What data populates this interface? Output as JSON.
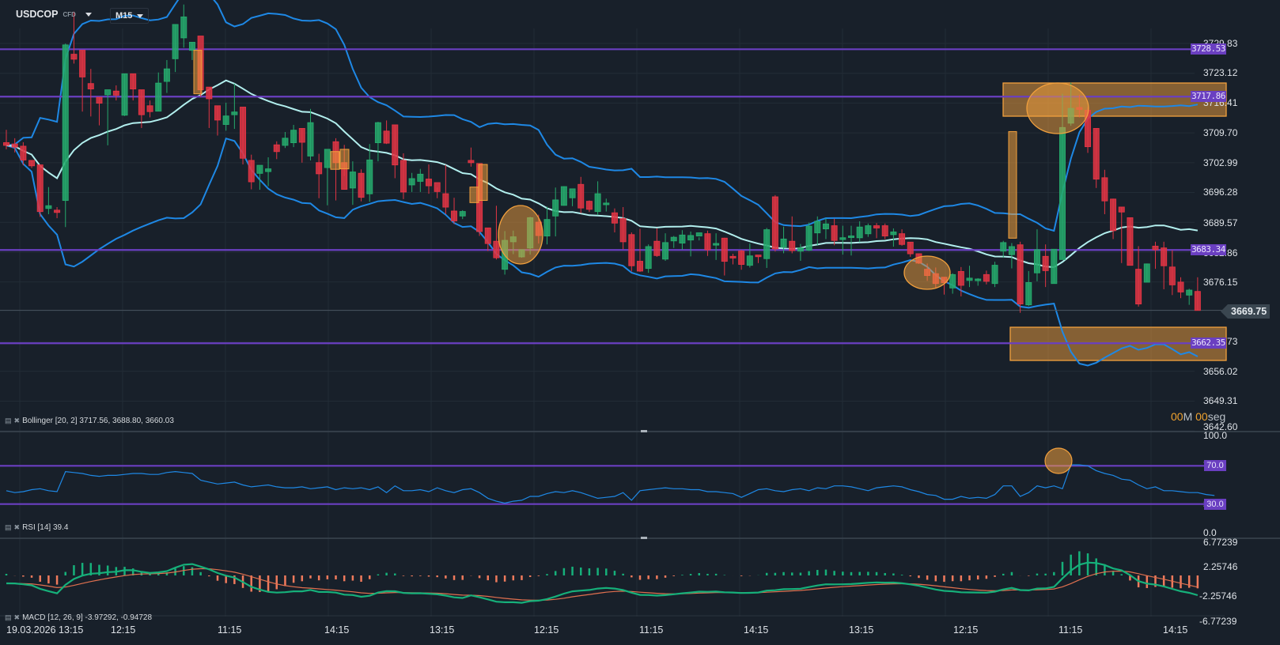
{
  "header": {
    "symbol": "USDCOP",
    "symbol_type": "CFD",
    "timeframe": "M15",
    "icons": [
      "chevron-down-icon",
      "chevron-down-icon"
    ]
  },
  "main_panel": {
    "price_axis": [
      "3729.83",
      "3723.12",
      "3716.41",
      "3709.70",
      "3702.99",
      "3696.28",
      "3689.57",
      "3682.86",
      "3676.15",
      "3669.75",
      "3662.73",
      "3656.02",
      "3649.31",
      "3642.60"
    ],
    "current_price": "3669.75",
    "horizontal_lines": [
      "3728.53",
      "3717.86",
      "3683.34",
      "3662.35"
    ],
    "timer": {
      "minutes": "00",
      "m_label": "M",
      "seconds": "00",
      "s_label": "seg"
    },
    "indicator_label": "Bollinger [20, 2] 3717.56, 3688.80, 3660.03"
  },
  "rsi_panel": {
    "axis": [
      "100.0",
      "70.0",
      "30.0",
      "0.0"
    ],
    "levels": [
      "70.0",
      "30.0"
    ],
    "indicator_label": "RSI [14] 39.4"
  },
  "macd_panel": {
    "axis": [
      "6.77239",
      "2.25746",
      "-2.25746",
      "-6.77239"
    ],
    "indicator_label": "MACD [12, 26, 9] -3.97292, -0.94728"
  },
  "x_axis": [
    "19.03.2026 13:15",
    "12:15",
    "11:15",
    "14:15",
    "13:15",
    "12:15",
    "11:15",
    "14:15",
    "13:15",
    "12:15",
    "11:15",
    "14:15"
  ],
  "colors": {
    "background": "#18202a",
    "bull": "#26a96c",
    "bear": "#e03544",
    "bb_outer": "#1e88e5",
    "bb_mid": "#b2efee",
    "level_line": "#6a3fc1",
    "highlight": "#f2a03d",
    "rsi_line": "#1e88e5",
    "macd_line": "#16b07a",
    "signal_line": "#e0704f",
    "hist_pos": "#16b07a",
    "hist_neg": "#ef7a5c"
  },
  "chart_data": [
    {
      "type": "candlestick",
      "title": "USDCOP CFD M15",
      "ylim": [
        3642.6,
        3733.0
      ],
      "price_ticks": [
        3729.83,
        3723.12,
        3716.41,
        3709.7,
        3702.99,
        3696.28,
        3689.57,
        3682.86,
        3676.15,
        3669.75,
        3662.73,
        3656.02,
        3649.31,
        3642.6
      ],
      "x_labels": [
        "19.03.2026 13:15",
        "12:15",
        "11:15",
        "14:15",
        "13:15",
        "12:15",
        "11:15",
        "14:15",
        "13:15",
        "12:15",
        "11:15",
        "14:15"
      ],
      "horizontal_levels": [
        3728.53,
        3717.86,
        3683.34,
        3662.35
      ],
      "last_price": 3669.75,
      "bollinger": {
        "period": 20,
        "mult": 2,
        "upper": 3717.56,
        "middle": 3688.8,
        "lower": 3660.03
      },
      "candles": [
        [
          3707.5,
          3710.4,
          3706.0,
          3706.9
        ],
        [
          3707.2,
          3708.5,
          3705.3,
          3706.5
        ],
        [
          3706.7,
          3707.6,
          3702.4,
          3703.6
        ],
        [
          3703.5,
          3703.5,
          3701.8,
          3702.3
        ],
        [
          3702.5,
          3702.5,
          3690.8,
          3692.0
        ],
        [
          3692.7,
          3697.5,
          3691.4,
          3693.3
        ],
        [
          3692.3,
          3693.0,
          3690.5,
          3691.8
        ],
        [
          3694.5,
          3729.8,
          3688.5,
          3729.5
        ],
        [
          3727.4,
          3737.0,
          3725.3,
          3726.3
        ],
        [
          3728.3,
          3728.3,
          3714.5,
          3722.3
        ],
        [
          3720.8,
          3724.1,
          3713.4,
          3719.6
        ],
        [
          3717.7,
          3717.7,
          3711.4,
          3716.4
        ],
        [
          3718.3,
          3718.3,
          3706.9,
          3719.4
        ],
        [
          3719.1,
          3720.4,
          3717.0,
          3718.2
        ],
        [
          3713.7,
          3723.0,
          3713.5,
          3723.0
        ],
        [
          3723.0,
          3723.0,
          3717.0,
          3719.6
        ],
        [
          3719.4,
          3719.4,
          3710.8,
          3713.8
        ],
        [
          3715.8,
          3717.0,
          3713.2,
          3714.5
        ],
        [
          3714.6,
          3723.3,
          3714.6,
          3720.9
        ],
        [
          3721.3,
          3726.1,
          3718.7,
          3724.1
        ],
        [
          3726.4,
          3734.1,
          3723.4,
          3734.1
        ],
        [
          3731.1,
          3738.6,
          3728.9,
          3735.8
        ],
        [
          3728.3,
          3730.0,
          3726.1,
          3730.1
        ],
        [
          3731.5,
          3727.2,
          3717.8,
          3719.4
        ],
        [
          3720.0,
          3720.0,
          3710.8,
          3717.4
        ],
        [
          3715.8,
          3715.8,
          3709.1,
          3712.6
        ],
        [
          3711.6,
          3716.5,
          3710.2,
          3713.5
        ],
        [
          3713.8,
          3720.8,
          3710.6,
          3714.4
        ],
        [
          3715.5,
          3715.5,
          3702.6,
          3704.0
        ],
        [
          3703.5,
          3704.8,
          3697.0,
          3698.7
        ],
        [
          3700.6,
          3702.0,
          3696.9,
          3702.4
        ],
        [
          3701.0,
          3704.2,
          3697.7,
          3701.6
        ],
        [
          3707.0,
          3707.8,
          3703.8,
          3705.5
        ],
        [
          3706.9,
          3709.9,
          3706.3,
          3708.5
        ],
        [
          3707.5,
          3711.5,
          3706.5,
          3710.3
        ],
        [
          3710.7,
          3710.7,
          3703.0,
          3707.6
        ],
        [
          3704.5,
          3715.1,
          3703.5,
          3712.0
        ],
        [
          3703.0,
          3705.0,
          3695.0,
          3700.5
        ],
        [
          3701.9,
          3703.6,
          3693.4,
          3706.0
        ],
        [
          3707.7,
          3708.5,
          3694.5,
          3703.0
        ],
        [
          3703.0,
          3707.0,
          3700.0,
          3697.0
        ],
        [
          3697.3,
          3703.3,
          3693.5,
          3700.9
        ],
        [
          3700.6,
          3701.5,
          3694.3,
          3695.2
        ],
        [
          3696.0,
          3707.2,
          3694.2,
          3703.6
        ],
        [
          3707.5,
          3712.2,
          3703.3,
          3712.0
        ],
        [
          3710.1,
          3712.5,
          3707.2,
          3707.4
        ],
        [
          3711.5,
          3711.5,
          3699.5,
          3702.5
        ],
        [
          3703.5,
          3705.1,
          3694.8,
          3696.4
        ],
        [
          3698.0,
          3700.7,
          3696.4,
          3699.4
        ],
        [
          3698.8,
          3701.6,
          3696.4,
          3700.4
        ],
        [
          3699.3,
          3702.6,
          3696.0,
          3697.8
        ],
        [
          3698.5,
          3697.4,
          3695.0,
          3696.5
        ],
        [
          3696.0,
          3702.5,
          3691.4,
          3693.0
        ],
        [
          3692.1,
          3695.1,
          3689.2,
          3689.9
        ],
        [
          3691.0,
          3692.3,
          3690.3,
          3692.0
        ],
        [
          3703.5,
          3706.4,
          3702.1,
          3703.0
        ],
        [
          3702.8,
          3702.8,
          3686.5,
          3687.5
        ],
        [
          3688.3,
          3688.3,
          3683.1,
          3684.8
        ],
        [
          3685.3,
          3693.3,
          3681.2,
          3681.6
        ],
        [
          3679.0,
          3687.6,
          3677.8,
          3685.5
        ],
        [
          3685.2,
          3687.7,
          3682.4,
          3686.3
        ],
        [
          3681.8,
          3683.4,
          3681.6,
          3683.4
        ],
        [
          3683.8,
          3690.8,
          3682.3,
          3690.6
        ],
        [
          3689.6,
          3691.3,
          3684.8,
          3686.6
        ],
        [
          3686.5,
          3693.1,
          3684.6,
          3690.2
        ],
        [
          3691.0,
          3697.4,
          3686.4,
          3694.6
        ],
        [
          3693.4,
          3697.7,
          3693.3,
          3697.6
        ],
        [
          3695.1,
          3696.5,
          3693.2,
          3697.1
        ],
        [
          3698.1,
          3699.8,
          3691.6,
          3692.8
        ],
        [
          3694.3,
          3694.5,
          3691.9,
          3692.5
        ],
        [
          3692.0,
          3698.8,
          3691.2,
          3696.0
        ],
        [
          3693.6,
          3694.9,
          3692.0,
          3693.9
        ],
        [
          3691.7,
          3692.7,
          3687.3,
          3689.4
        ],
        [
          3690.4,
          3693.0,
          3683.5,
          3685.2
        ],
        [
          3686.8,
          3687.3,
          3678.5,
          3679.8
        ],
        [
          3680.8,
          3688.1,
          3678.4,
          3678.6
        ],
        [
          3679.2,
          3684.6,
          3678.2,
          3684.1
        ],
        [
          3685.3,
          3688.2,
          3681.8,
          3682.1
        ],
        [
          3681.3,
          3687.1,
          3680.9,
          3685.0
        ],
        [
          3685.4,
          3686.5,
          3683.8,
          3686.2
        ],
        [
          3684.9,
          3687.8,
          3683.4,
          3686.7
        ],
        [
          3685.6,
          3687.5,
          3681.9,
          3686.6
        ],
        [
          3686.5,
          3686.2,
          3685.5,
          3687.2
        ],
        [
          3687.0,
          3687.7,
          3682.0,
          3683.4
        ],
        [
          3684.6,
          3687.1,
          3681.1,
          3684.8
        ],
        [
          3686.0,
          3686.1,
          3677.6,
          3680.8
        ],
        [
          3681.9,
          3682.5,
          3680.1,
          3681.6
        ],
        [
          3683.1,
          3683.4,
          3678.9,
          3680.1
        ],
        [
          3679.9,
          3684.8,
          3679.4,
          3682.0
        ],
        [
          3682.2,
          3681.9,
          3680.4,
          3681.9
        ],
        [
          3681.4,
          3688.3,
          3679.3,
          3687.9
        ],
        [
          3695.3,
          3695.7,
          3683.0,
          3683.6
        ],
        [
          3684.0,
          3688.6,
          3682.6,
          3685.8
        ],
        [
          3685.3,
          3690.9,
          3682.6,
          3683.2
        ],
        [
          3683.1,
          3684.7,
          3680.9,
          3683.8
        ],
        [
          3683.3,
          3689.5,
          3683.1,
          3688.7
        ],
        [
          3687.2,
          3690.9,
          3684.3,
          3689.8
        ],
        [
          3688.1,
          3690.5,
          3685.8,
          3689.2
        ],
        [
          3688.8,
          3690.4,
          3684.4,
          3685.5
        ],
        [
          3685.7,
          3688.8,
          3682.3,
          3686.1
        ],
        [
          3686.2,
          3688.8,
          3682.1,
          3686.5
        ],
        [
          3686.1,
          3689.8,
          3685.1,
          3688.5
        ],
        [
          3687.0,
          3689.3,
          3686.3,
          3688.8
        ],
        [
          3688.8,
          3689.4,
          3686.0,
          3688.3
        ],
        [
          3688.8,
          3689.3,
          3685.8,
          3686.5
        ],
        [
          3686.8,
          3688.2,
          3684.1,
          3687.4
        ],
        [
          3687.0,
          3688.0,
          3684.3,
          3684.6
        ],
        [
          3685.1,
          3685.1,
          3681.8,
          3682.5
        ],
        [
          3682.5,
          3682.5,
          3680.2,
          3680.4
        ],
        [
          3679.0,
          3680.3,
          3676.4,
          3677.6
        ],
        [
          3678.0,
          3679.4,
          3674.8,
          3675.8
        ],
        [
          3677.2,
          3677.2,
          3673.3,
          3676.0
        ],
        [
          3674.8,
          3678.1,
          3673.5,
          3677.8
        ],
        [
          3678.5,
          3679.5,
          3672.9,
          3675.4
        ],
        [
          3676.5,
          3679.8,
          3675.0,
          3677.0
        ],
        [
          3676.6,
          3677.0,
          3675.3,
          3676.8
        ],
        [
          3677.8,
          3678.7,
          3675.6,
          3676.3
        ],
        [
          3675.8,
          3680.7,
          3675.0,
          3679.9
        ],
        [
          3683.1,
          3685.4,
          3681.6,
          3685.0
        ],
        [
          3682.3,
          3684.9,
          3679.2,
          3684.1
        ],
        [
          3684.5,
          3685.2,
          3669.2,
          3671.2
        ],
        [
          3671.0,
          3678.6,
          3670.7,
          3676.0
        ],
        [
          3678.2,
          3688.0,
          3676.3,
          3683.4
        ],
        [
          3681.9,
          3684.6,
          3675.0,
          3678.7
        ],
        [
          3675.8,
          3683.4,
          3675.9,
          3683.5
        ],
        [
          3681.2,
          3718.5,
          3681.2,
          3710.9
        ],
        [
          3711.9,
          3721.0,
          3711.3,
          3715.2
        ],
        [
          3715.4,
          3718.3,
          3713.2,
          3715.0
        ],
        [
          3714.8,
          3715.5,
          3705.2,
          3706.6
        ],
        [
          3710.7,
          3710.7,
          3697.3,
          3699.3
        ],
        [
          3699.6,
          3701.4,
          3691.4,
          3694.4
        ],
        [
          3694.8,
          3694.9,
          3685.8,
          3687.7
        ],
        [
          3693.0,
          3693.0,
          3680.4,
          3691.9
        ],
        [
          3690.6,
          3690.6,
          3680.9,
          3679.9
        ],
        [
          3679.0,
          3684.2,
          3670.6,
          3671.2
        ],
        [
          3676.1,
          3680.3,
          3676.2,
          3680.2
        ],
        [
          3684.2,
          3685.2,
          3679.1,
          3683.4
        ],
        [
          3683.8,
          3685.2,
          3674.5,
          3679.8
        ],
        [
          3679.5,
          3683.3,
          3673.2,
          3675.5
        ],
        [
          3676.1,
          3677.2,
          3672.5,
          3673.9
        ],
        [
          3673.2,
          3674.6,
          3671.0,
          3674.3
        ],
        [
          3674.0,
          3677.2,
          3669.7,
          3669.75
        ]
      ],
      "highlights": [
        {
          "type": "rect",
          "from": 3728.0,
          "to": 3716.5,
          "note": "vertical candle highlights"
        },
        {
          "type": "zone",
          "top": 3719.3,
          "bottom": 3713.3
        },
        {
          "type": "zone",
          "top": 3665.5,
          "bottom": 3658.3
        }
      ]
    },
    {
      "type": "line",
      "title": "RSI [14] 39.4",
      "ylim": [
        0,
        100
      ],
      "levels": [
        70,
        30
      ],
      "last_value": 39.4,
      "values": [
        44,
        42,
        43,
        45,
        46,
        44,
        43,
        64,
        63,
        62,
        60,
        59,
        60,
        60,
        61,
        62,
        62,
        61,
        61,
        63,
        64,
        63,
        62,
        55,
        53,
        51,
        52,
        53,
        50,
        48,
        49,
        50,
        48,
        47,
        47,
        48,
        46,
        47,
        48,
        45,
        47,
        46,
        47,
        45,
        48,
        42,
        49,
        44,
        44,
        45,
        43,
        47,
        44,
        42,
        45,
        46,
        42,
        36,
        33,
        31,
        33,
        34,
        38,
        38,
        41,
        43,
        42,
        44,
        42,
        39,
        36,
        37,
        38,
        42,
        34,
        44,
        45,
        46,
        47,
        46,
        46,
        45,
        45,
        43,
        43,
        42,
        41,
        37,
        41,
        45,
        46,
        44,
        43,
        45,
        46,
        44,
        47,
        46,
        49,
        49,
        48,
        46,
        44,
        47,
        48,
        49,
        48,
        45,
        43,
        40,
        39,
        35,
        35,
        38,
        36,
        37,
        36,
        40,
        49,
        49,
        38,
        42,
        49,
        47,
        49,
        46,
        71,
        71,
        70,
        65,
        62,
        60,
        56,
        55,
        50,
        46,
        48,
        44,
        44,
        43,
        42,
        42,
        40,
        39
      ]
    },
    {
      "type": "bar+line",
      "title": "MACD [12, 26, 9] -3.97292, -0.94728",
      "ylim": [
        -6.77239,
        6.77239
      ],
      "axis_ticks": [
        6.77239,
        2.25746,
        -2.25746,
        -6.77239
      ],
      "macd_last": -3.97292,
      "signal_last": -0.94728
    }
  ]
}
